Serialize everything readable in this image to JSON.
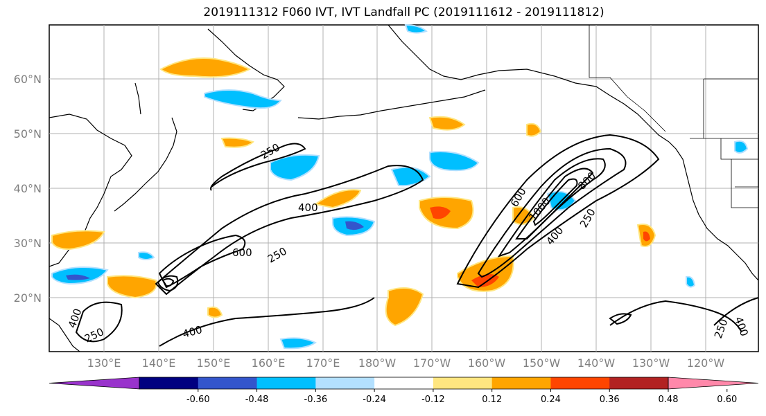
{
  "title": "2019111312 F060 IVT, IVT Landfall PC (2019111612 - 2019111812)",
  "map": {
    "lat_ticks": [
      "60°N",
      "50°N",
      "40°N",
      "30°N",
      "20°N"
    ],
    "lon_ticks": [
      "130°E",
      "140°E",
      "150°E",
      "160°E",
      "170°E",
      "180°W",
      "170°W",
      "160°W",
      "150°W",
      "140°W",
      "130°W",
      "120°W"
    ],
    "ivt_contour_labels": [
      "250",
      "400",
      "600",
      "250",
      "400",
      "250",
      "600",
      "800",
      "1000",
      "400",
      "250",
      "400",
      "250",
      "400"
    ]
  },
  "colorbar": {
    "colors": [
      "#9933cc",
      "#000080",
      "#3355cc",
      "#00bfff",
      "#b3e0ff",
      "#ffffff",
      "#ffe680",
      "#ffa500",
      "#ff4500",
      "#b22222",
      "#ff88aa"
    ],
    "tick_labels": [
      "-0.60",
      "-0.48",
      "-0.36",
      "-0.24",
      "-0.12",
      "0.12",
      "0.24",
      "0.36",
      "0.48",
      "0.60"
    ]
  }
}
